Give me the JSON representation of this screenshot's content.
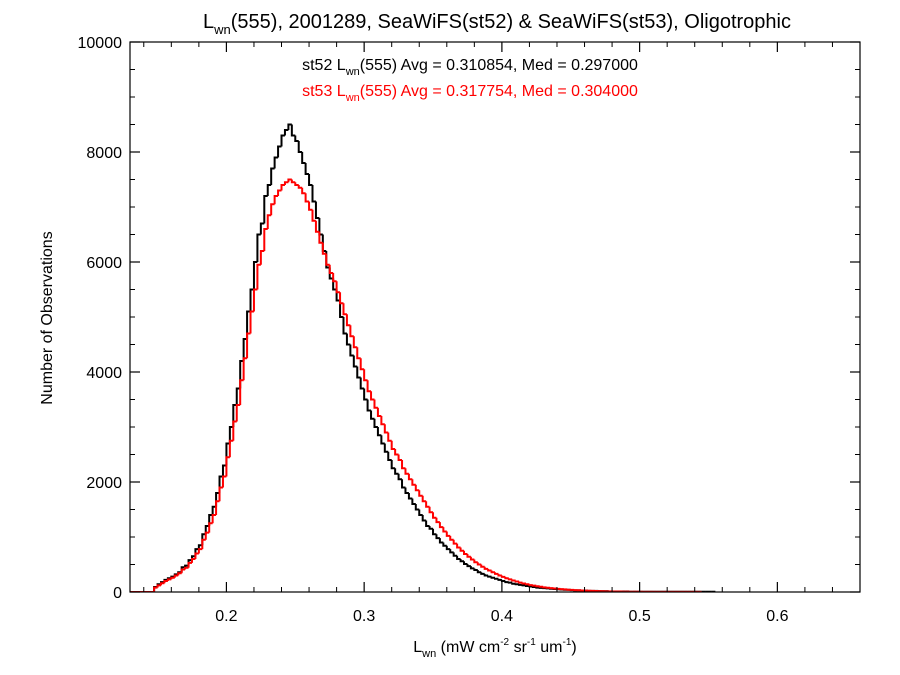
{
  "chart_data": {
    "type": "line",
    "step": true,
    "title": "Lwn(555), 2001289, SeaWiFS(st52) & SeaWiFS(st53), Oligotrophic",
    "title_parts": {
      "base": "L",
      "sub": "wn",
      "rest": "(555), 2001289, SeaWiFS(st52) & SeaWiFS(st53), Oligotrophic"
    },
    "xlabel": "Lwn (mW cm-2 sr-1 um-1)",
    "xlabel_parts": {
      "base": "L",
      "sub": "wn",
      "p1": " (mW cm",
      "sup1": "-2",
      "p2": " sr",
      "sup2": "-1",
      "p3": " um",
      "sup3": "-1",
      "p4": ")"
    },
    "ylabel": "Number of Observations",
    "xlim": [
      0.13,
      0.66
    ],
    "ylim": [
      0,
      10000
    ],
    "xticks": [
      "0.2",
      "0.3",
      "0.4",
      "0.5",
      "0.6"
    ],
    "yticks": [
      "0",
      "2000",
      "4000",
      "6000",
      "8000",
      "10000"
    ],
    "grid": false,
    "legend_placement": "top",
    "bin_width": 0.0025,
    "series": [
      {
        "name": "st52",
        "color": "#000000",
        "annotation": {
          "pre": "st52 L",
          "sub": "wn",
          "post": "(555) Avg = 0.310854, Med = 0.297000"
        },
        "x_start": 0.145,
        "values": [
          0,
          90,
          140,
          180,
          220,
          250,
          280,
          320,
          360,
          450,
          480,
          580,
          650,
          780,
          850,
          1050,
          1200,
          1400,
          1550,
          1800,
          2100,
          2300,
          2700,
          3000,
          3400,
          3700,
          4200,
          4600,
          5100,
          5500,
          6000,
          6500,
          6700,
          7200,
          7400,
          7700,
          7900,
          8100,
          8300,
          8400,
          8500,
          8300,
          8200,
          8000,
          7800,
          7600,
          7400,
          7100,
          6800,
          6500,
          6200,
          5900,
          5700,
          5500,
          5300,
          5000,
          4700,
          4500,
          4300,
          4100,
          3900,
          3700,
          3500,
          3300,
          3150,
          3000,
          2850,
          2700,
          2550,
          2400,
          2250,
          2150,
          2050,
          1900,
          1800,
          1700,
          1600,
          1500,
          1400,
          1300,
          1200,
          1150,
          1050,
          980,
          900,
          840,
          780,
          720,
          660,
          600,
          560,
          510,
          470,
          430,
          400,
          360,
          330,
          300,
          280,
          260,
          240,
          220,
          200,
          180,
          170,
          150,
          140,
          130,
          120,
          110,
          100,
          90,
          80,
          75,
          70,
          65,
          60,
          55,
          50,
          45,
          40,
          40,
          35,
          30,
          30,
          25,
          25,
          20,
          20,
          20,
          15,
          15,
          15,
          10,
          10,
          10,
          10,
          10,
          10,
          5,
          5,
          5,
          5,
          5,
          5,
          5,
          5,
          5,
          5,
          5,
          5,
          5,
          5,
          5,
          5,
          5,
          5,
          5,
          5,
          5,
          5,
          5,
          5,
          5
        ]
      },
      {
        "name": "st53",
        "color": "#ff0000",
        "annotation": {
          "pre": "st53 L",
          "sub": "wn",
          "post": "(555) Avg = 0.317754, Med = 0.304000"
        },
        "x_start": 0.145,
        "values": [
          0,
          80,
          120,
          160,
          200,
          230,
          260,
          300,
          340,
          410,
          440,
          530,
          600,
          700,
          780,
          950,
          1080,
          1250,
          1400,
          1650,
          1900,
          2100,
          2450,
          2750,
          3100,
          3400,
          3850,
          4250,
          4700,
          5100,
          5500,
          5950,
          6200,
          6600,
          6850,
          7050,
          7200,
          7300,
          7400,
          7450,
          7500,
          7450,
          7400,
          7350,
          7250,
          7100,
          6950,
          6750,
          6550,
          6350,
          6150,
          5950,
          5800,
          5650,
          5450,
          5250,
          5050,
          4850,
          4650,
          4450,
          4250,
          4050,
          3850,
          3650,
          3500,
          3350,
          3200,
          3050,
          2900,
          2750,
          2600,
          2500,
          2400,
          2250,
          2150,
          2050,
          1950,
          1850,
          1750,
          1650,
          1550,
          1450,
          1350,
          1270,
          1180,
          1100,
          1020,
          950,
          880,
          810,
          750,
          690,
          640,
          590,
          540,
          500,
          460,
          420,
          390,
          360,
          330,
          300,
          275,
          250,
          230,
          210,
          190,
          170,
          155,
          140,
          125,
          115,
          105,
          95,
          85,
          78,
          70,
          63,
          57,
          52,
          47,
          42,
          38,
          34,
          31,
          28,
          25,
          22,
          20,
          18,
          16,
          14,
          12,
          11,
          10,
          9,
          8,
          7,
          6,
          5,
          5,
          4,
          4,
          3,
          3,
          3,
          2,
          2,
          2,
          2,
          2,
          2,
          2,
          2,
          2,
          2,
          2,
          2,
          2,
          2
        ]
      }
    ]
  }
}
